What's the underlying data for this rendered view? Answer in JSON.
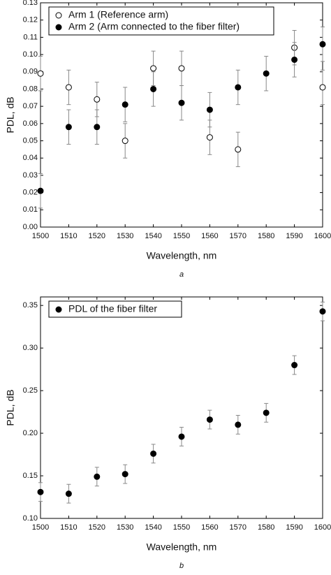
{
  "chart_data": [
    {
      "type": "scatter",
      "xlabel": "Wavelength, nm",
      "ylabel": "PDL, dB",
      "caption": "a",
      "x": [
        1500,
        1510,
        1520,
        1530,
        1540,
        1550,
        1560,
        1570,
        1580,
        1590,
        1600
      ],
      "xlim": [
        1500,
        1600
      ],
      "xticks": [
        1500,
        1510,
        1520,
        1530,
        1540,
        1550,
        1560,
        1570,
        1580,
        1590,
        1600
      ],
      "ylim": [
        0,
        0.13
      ],
      "yticks": [
        {
          "value": 0,
          "label": "0.00"
        },
        {
          "value": 0.01,
          "label": "0.01"
        },
        {
          "value": 0.02,
          "label": "0.02"
        },
        {
          "value": 0.03,
          "label": "0.03"
        },
        {
          "value": 0.04,
          "label": "0.04"
        },
        {
          "value": 0.05,
          "label": "0.05"
        },
        {
          "value": 0.06,
          "label": "0.06"
        },
        {
          "value": 0.07,
          "label": "0.07"
        },
        {
          "value": 0.08,
          "label": "0.08"
        },
        {
          "value": 0.09,
          "label": "0.09"
        },
        {
          "value": 0.1,
          "label": "0.10"
        },
        {
          "value": 0.11,
          "label": "0.11"
        },
        {
          "value": 0.12,
          "label": "0.12"
        },
        {
          "value": 0.13,
          "label": "0.13"
        }
      ],
      "legend": "upper left",
      "series": [
        {
          "name": "Arm 1 (Reference arm)",
          "color": "#000000",
          "marker": "open",
          "values": [
            0.089,
            0.081,
            0.074,
            0.05,
            0.092,
            0.092,
            0.052,
            0.045,
            null,
            0.104,
            0.081
          ],
          "errors": [
            0.01,
            0.01,
            0.01,
            0.01,
            0.01,
            0.01,
            0.01,
            0.01,
            null,
            0.01,
            0.01
          ]
        },
        {
          "name": "Arm 2 (Arm connected to the fiber filter)",
          "color": "#000000",
          "marker": "filled",
          "values": [
            0.021,
            0.058,
            0.058,
            0.071,
            0.08,
            0.072,
            0.068,
            0.081,
            0.089,
            0.097,
            0.106
          ],
          "errors": [
            0.01,
            0.01,
            0.01,
            0.01,
            0.01,
            0.01,
            0.01,
            0.01,
            0.01,
            0.01,
            0.01
          ]
        }
      ]
    },
    {
      "type": "scatter",
      "xlabel": "Wavelength, nm",
      "ylabel": "PDL, dB",
      "caption": "b",
      "x": [
        1500,
        1510,
        1520,
        1530,
        1540,
        1550,
        1560,
        1570,
        1580,
        1590,
        1600
      ],
      "xlim": [
        1500,
        1600
      ],
      "xticks": [
        1500,
        1510,
        1520,
        1530,
        1540,
        1550,
        1560,
        1570,
        1580,
        1590,
        1600
      ],
      "ylim": [
        0.1,
        0.36
      ],
      "yticks": [
        {
          "value": 0.1,
          "label": "0.10"
        },
        0.15,
        {
          "value": 0.2,
          "label": "0.20"
        },
        0.25,
        {
          "value": 0.3,
          "label": "0.30"
        },
        0.35
      ],
      "legend": "upper left",
      "series": [
        {
          "name": "PDL of the fiber filter",
          "color": "#000000",
          "marker": "filled",
          "values": [
            0.131,
            0.129,
            0.149,
            0.152,
            0.176,
            0.196,
            0.216,
            0.21,
            0.224,
            0.28,
            0.343
          ],
          "errors": [
            0.011,
            0.011,
            0.011,
            0.011,
            0.011,
            0.011,
            0.011,
            0.011,
            0.011,
            0.011,
            0.011
          ]
        }
      ]
    }
  ]
}
